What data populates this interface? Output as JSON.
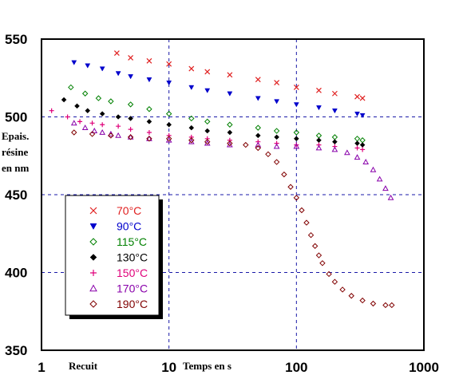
{
  "chart_data": {
    "type": "scatter",
    "title": "",
    "xlabel_left": "Recuit",
    "xlabel": "Temps en s",
    "ylabel": [
      "Epais.",
      "résine",
      "en nm"
    ],
    "x_scale": "log",
    "xlim": [
      1,
      1000
    ],
    "ylim": [
      350,
      550
    ],
    "x_ticks": [
      "1",
      "10",
      "100",
      "1000"
    ],
    "y_ticks": [
      "350",
      "400",
      "450",
      "500",
      "550"
    ],
    "grid": "dashed lines at x=10, x=100, y=400, y=450, y=500",
    "legend_position": "left-middle",
    "series": [
      {
        "name": "70°C",
        "color": "#e02020",
        "marker": "x",
        "points": [
          [
            3.9,
            541
          ],
          [
            5,
            538
          ],
          [
            7,
            536
          ],
          [
            10,
            534
          ],
          [
            15,
            531
          ],
          [
            20,
            529
          ],
          [
            30,
            527
          ],
          [
            50,
            524
          ],
          [
            70,
            522
          ],
          [
            100,
            519
          ],
          [
            150,
            517
          ],
          [
            200,
            515
          ],
          [
            300,
            513
          ],
          [
            330,
            512
          ]
        ]
      },
      {
        "name": "90°C",
        "color": "#0000cc",
        "marker": "triangle-down",
        "points": [
          [
            1.8,
            535
          ],
          [
            2.3,
            533
          ],
          [
            3,
            531
          ],
          [
            4,
            528
          ],
          [
            5,
            526
          ],
          [
            7,
            524
          ],
          [
            10,
            522
          ],
          [
            15,
            519
          ],
          [
            20,
            517
          ],
          [
            30,
            515
          ],
          [
            50,
            512
          ],
          [
            70,
            510
          ],
          [
            100,
            508
          ],
          [
            150,
            506
          ],
          [
            200,
            504
          ],
          [
            300,
            502
          ],
          [
            330,
            501
          ]
        ]
      },
      {
        "name": "115°C",
        "color": "#008000",
        "marker": "diamond-open",
        "points": [
          [
            1.7,
            519
          ],
          [
            2.2,
            515
          ],
          [
            2.8,
            512
          ],
          [
            3.5,
            510
          ],
          [
            5,
            508
          ],
          [
            7,
            505
          ],
          [
            10,
            502
          ],
          [
            15,
            499
          ],
          [
            20,
            497
          ],
          [
            30,
            495
          ],
          [
            50,
            493
          ],
          [
            70,
            491
          ],
          [
            100,
            490
          ],
          [
            150,
            488
          ],
          [
            200,
            487
          ],
          [
            300,
            486
          ],
          [
            330,
            485
          ]
        ]
      },
      {
        "name": "130°C",
        "color": "#000000",
        "marker": "diamond-filled",
        "points": [
          [
            1.5,
            511
          ],
          [
            1.9,
            507
          ],
          [
            2.3,
            504
          ],
          [
            3,
            502
          ],
          [
            4,
            500
          ],
          [
            5,
            499
          ],
          [
            7,
            497
          ],
          [
            10,
            495
          ],
          [
            15,
            493
          ],
          [
            20,
            491
          ],
          [
            30,
            490
          ],
          [
            50,
            488
          ],
          [
            70,
            487
          ],
          [
            100,
            486
          ],
          [
            150,
            485
          ],
          [
            200,
            484
          ],
          [
            300,
            483
          ],
          [
            330,
            482
          ]
        ]
      },
      {
        "name": "150°C",
        "color": "#e0007a",
        "marker": "plus",
        "points": [
          [
            1.2,
            504
          ],
          [
            1.6,
            500
          ],
          [
            2,
            497
          ],
          [
            2.5,
            496
          ],
          [
            3,
            495
          ],
          [
            4,
            494
          ],
          [
            5,
            492
          ],
          [
            7,
            490
          ],
          [
            10,
            488
          ],
          [
            15,
            487
          ],
          [
            20,
            486
          ],
          [
            30,
            485
          ],
          [
            50,
            484
          ],
          [
            70,
            483
          ],
          [
            100,
            482
          ],
          [
            150,
            482
          ],
          [
            200,
            481
          ],
          [
            300,
            480
          ],
          [
            330,
            479
          ]
        ]
      },
      {
        "name": "170°C",
        "color": "#8800aa",
        "marker": "triangle-up-open",
        "points": [
          [
            1.8,
            496
          ],
          [
            2.2,
            493
          ],
          [
            2.6,
            491
          ],
          [
            3,
            490
          ],
          [
            3.5,
            489
          ],
          [
            4,
            488
          ],
          [
            5,
            487
          ],
          [
            7,
            486
          ],
          [
            10,
            485
          ],
          [
            15,
            484
          ],
          [
            20,
            483
          ],
          [
            30,
            482
          ],
          [
            50,
            482
          ],
          [
            70,
            481
          ],
          [
            100,
            481
          ],
          [
            150,
            480
          ],
          [
            200,
            479
          ],
          [
            250,
            477
          ],
          [
            300,
            474
          ],
          [
            350,
            471
          ],
          [
            400,
            466
          ],
          [
            450,
            460
          ],
          [
            500,
            454
          ],
          [
            550,
            448
          ]
        ]
      },
      {
        "name": "190°C",
        "color": "#800000",
        "marker": "diamond-open",
        "points": [
          [
            1.8,
            490
          ],
          [
            2.5,
            489
          ],
          [
            3.5,
            488
          ],
          [
            5,
            487
          ],
          [
            7,
            486
          ],
          [
            10,
            486
          ],
          [
            15,
            485
          ],
          [
            20,
            484
          ],
          [
            30,
            483
          ],
          [
            40,
            482
          ],
          [
            50,
            480
          ],
          [
            60,
            476
          ],
          [
            70,
            471
          ],
          [
            80,
            463
          ],
          [
            90,
            455
          ],
          [
            100,
            448
          ],
          [
            110,
            440
          ],
          [
            120,
            432
          ],
          [
            130,
            424
          ],
          [
            140,
            417
          ],
          [
            150,
            411
          ],
          [
            160,
            406
          ],
          [
            180,
            399
          ],
          [
            200,
            394
          ],
          [
            230,
            389
          ],
          [
            270,
            385
          ],
          [
            330,
            382
          ],
          [
            400,
            380
          ],
          [
            500,
            379
          ],
          [
            560,
            379
          ]
        ]
      }
    ]
  }
}
